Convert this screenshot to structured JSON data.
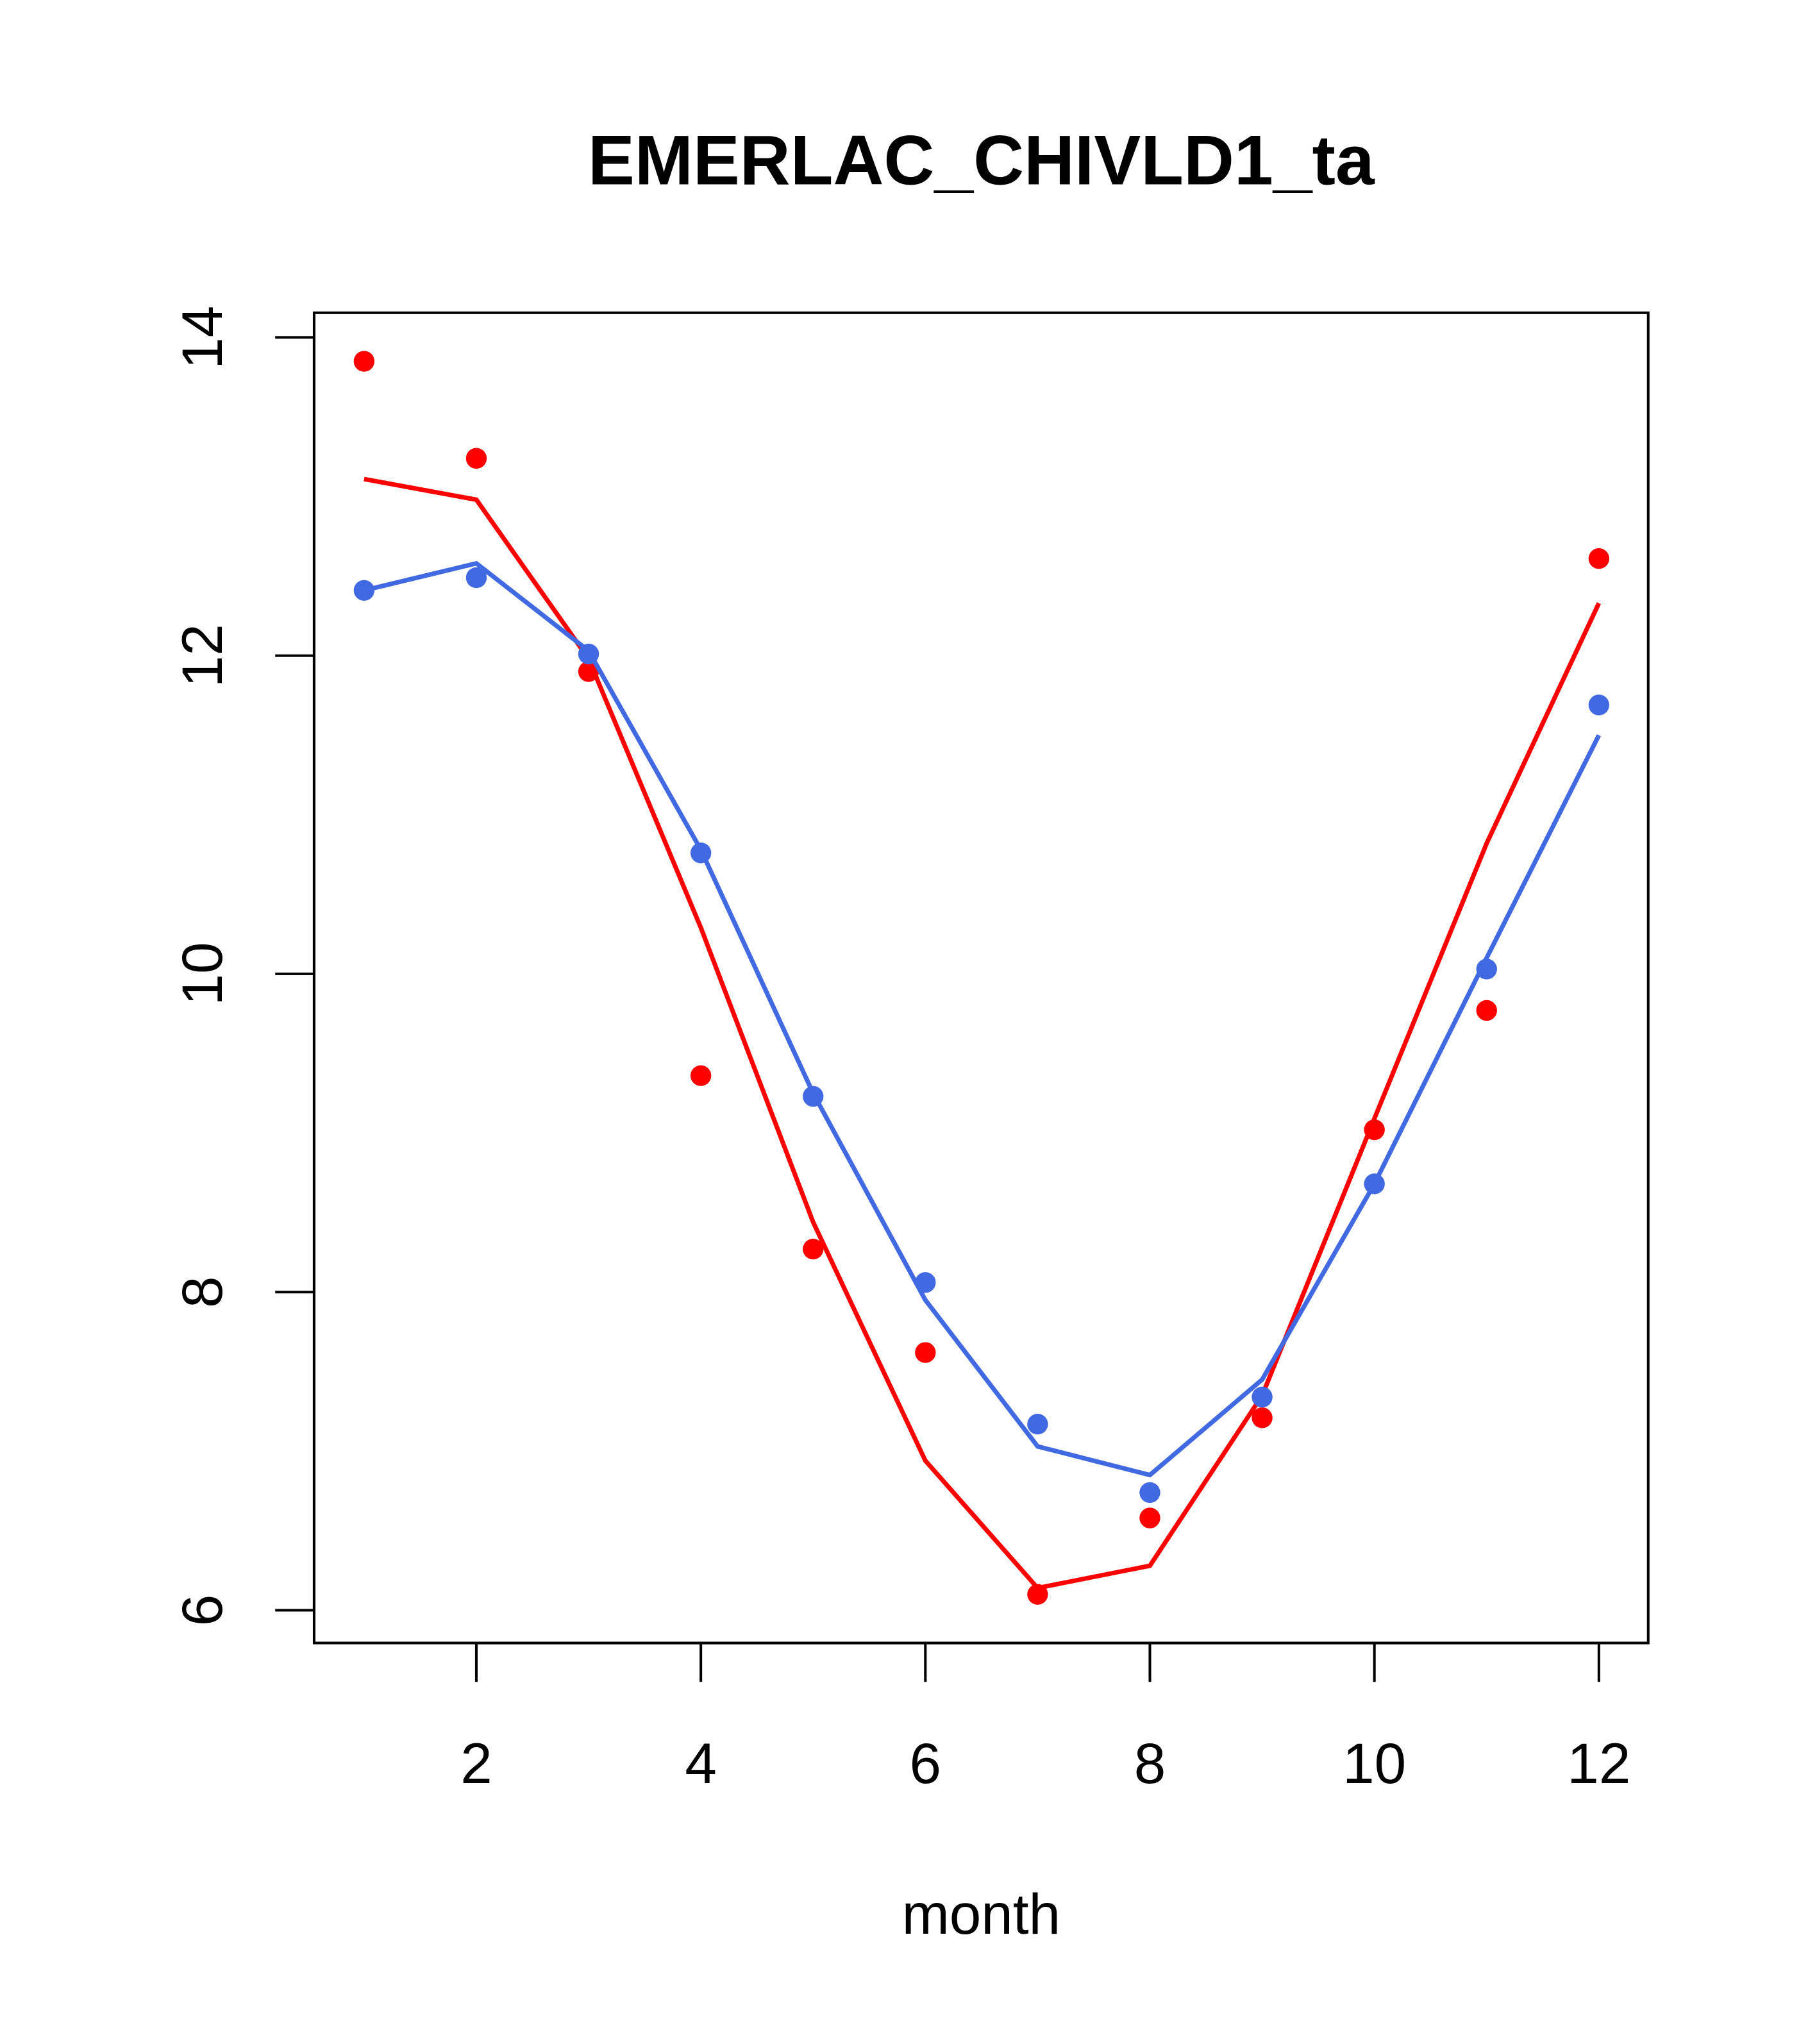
{
  "chart_data": {
    "type": "line",
    "title": "EMERLAC_CHIVLD1_ta",
    "xlabel": "month",
    "ylabel": "",
    "xlim": [
      0.57,
      12.44
    ],
    "ylim": [
      5.8,
      14.15
    ],
    "x_ticks": [
      2,
      4,
      6,
      8,
      10,
      12
    ],
    "y_ticks": [
      6,
      8,
      10,
      12,
      14
    ],
    "x": [
      1,
      2,
      3,
      4,
      5,
      6,
      7,
      8,
      9,
      10,
      11,
      12
    ],
    "grid": false,
    "series": [
      {
        "name": "red points",
        "kind": "points",
        "color": "#ff0000",
        "values": [
          13.85,
          13.24,
          11.9,
          9.36,
          8.27,
          7.62,
          6.1,
          6.58,
          7.21,
          9.02,
          9.77,
          12.61
        ]
      },
      {
        "name": "red line",
        "kind": "line",
        "color": "#ff0000",
        "values": [
          13.11,
          12.98,
          11.98,
          10.29,
          8.44,
          6.94,
          6.14,
          6.28,
          7.35,
          9.09,
          10.82,
          12.33
        ]
      },
      {
        "name": "blue points",
        "kind": "points",
        "color": "#4169e1",
        "values": [
          12.41,
          12.49,
          12.01,
          10.76,
          9.23,
          8.06,
          7.17,
          6.74,
          7.34,
          8.68,
          10.03,
          11.69
        ]
      },
      {
        "name": "blue line",
        "kind": "line",
        "color": "#4169e1",
        "values": [
          12.41,
          12.58,
          12.03,
          10.78,
          9.25,
          7.95,
          7.03,
          6.85,
          7.45,
          8.68,
          10.1,
          11.5
        ]
      }
    ]
  }
}
